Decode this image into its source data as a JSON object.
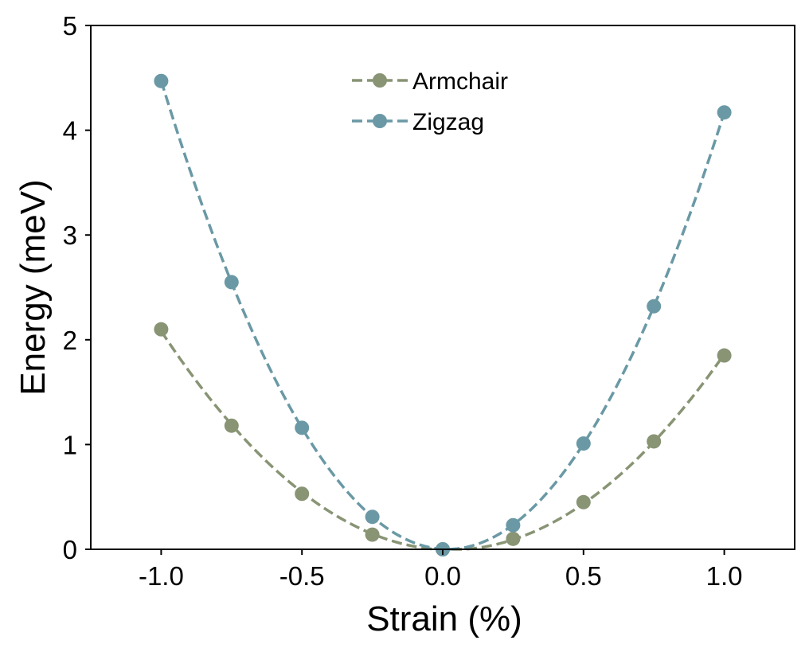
{
  "chart_data": {
    "type": "line",
    "xlabel": "Strain (%)",
    "ylabel": "Energy (meV)",
    "xlim": [
      -1.25,
      1.25
    ],
    "ylim": [
      0,
      5
    ],
    "xticks": [
      -1.0,
      -0.5,
      0.0,
      0.5,
      1.0
    ],
    "xtick_labels": [
      "-1.0",
      "-0.5",
      "0.0",
      "0.5",
      "1.0"
    ],
    "yticks": [
      0,
      1,
      2,
      3,
      4,
      5
    ],
    "ytick_labels": [
      "0",
      "1",
      "2",
      "3",
      "4",
      "5"
    ],
    "grid": false,
    "legend_position": "top-center",
    "line_style": "dashed with circle markers",
    "series": [
      {
        "name": "Armchair",
        "color": "#889474",
        "x": [
          -1.0,
          -0.75,
          -0.5,
          -0.25,
          0.0,
          0.25,
          0.5,
          0.75,
          1.0
        ],
        "y": [
          2.1,
          1.18,
          0.53,
          0.14,
          0.0,
          0.1,
          0.45,
          1.03,
          1.85
        ]
      },
      {
        "name": "Zigzag",
        "color": "#6a99a5",
        "x": [
          -1.0,
          -0.75,
          -0.5,
          -0.25,
          0.0,
          0.25,
          0.5,
          0.75,
          1.0
        ],
        "y": [
          4.47,
          2.55,
          1.16,
          0.31,
          0.0,
          0.23,
          1.01,
          2.32,
          4.17
        ]
      }
    ]
  }
}
